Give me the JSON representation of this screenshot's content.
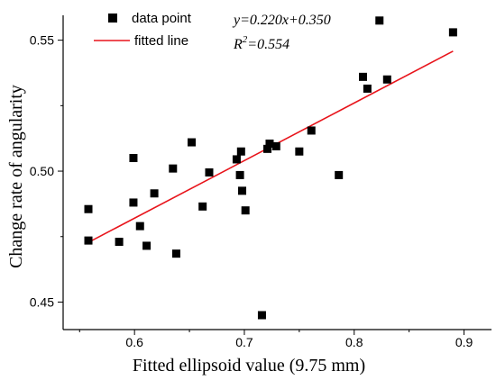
{
  "chart_data": {
    "type": "scatter",
    "xlabel": "Fitted ellipsoid value (9.75 mm)",
    "ylabel": "Change rate of angularity",
    "xlim": [
      0.535,
      0.925
    ],
    "ylim": [
      0.4395,
      0.5595
    ],
    "xticks": [
      {
        "value": 0.6,
        "label": "0.6"
      },
      {
        "value": 0.7,
        "label": "0.7"
      },
      {
        "value": 0.8,
        "label": "0.8"
      },
      {
        "value": 0.9,
        "label": "0.9"
      }
    ],
    "yticks": [
      {
        "value": 0.45,
        "label": "0.45"
      },
      {
        "value": 0.5,
        "label": "0.50"
      },
      {
        "value": 0.55,
        "label": "0.55"
      }
    ],
    "series": [
      {
        "name": "data point",
        "kind": "scatter",
        "color": "#000000",
        "points": [
          [
            0.558,
            0.4855
          ],
          [
            0.558,
            0.4735
          ],
          [
            0.586,
            0.473
          ],
          [
            0.599,
            0.505
          ],
          [
            0.599,
            0.488
          ],
          [
            0.605,
            0.479
          ],
          [
            0.611,
            0.4715
          ],
          [
            0.618,
            0.4915
          ],
          [
            0.635,
            0.501
          ],
          [
            0.638,
            0.4685
          ],
          [
            0.652,
            0.511
          ],
          [
            0.662,
            0.4865
          ],
          [
            0.668,
            0.4995
          ],
          [
            0.693,
            0.5045
          ],
          [
            0.696,
            0.4985
          ],
          [
            0.697,
            0.5075
          ],
          [
            0.698,
            0.4925
          ],
          [
            0.701,
            0.485
          ],
          [
            0.716,
            0.445
          ],
          [
            0.721,
            0.5085
          ],
          [
            0.723,
            0.5105
          ],
          [
            0.729,
            0.5095
          ],
          [
            0.75,
            0.5075
          ],
          [
            0.761,
            0.5155
          ],
          [
            0.786,
            0.4985
          ],
          [
            0.808,
            0.536
          ],
          [
            0.812,
            0.5315
          ],
          [
            0.823,
            0.5575
          ],
          [
            0.83,
            0.535
          ],
          [
            0.89,
            0.553
          ]
        ]
      },
      {
        "name": "fitted line",
        "kind": "line",
        "color": "#e8141b",
        "points": [
          [
            0.558,
            0.4728
          ],
          [
            0.89,
            0.5458
          ]
        ]
      }
    ],
    "annotations": [
      {
        "id": "equation",
        "text": "y=0.220x+0.350"
      },
      {
        "id": "r2",
        "prefix": "R",
        "sup": "2",
        "suffix": "=0.554"
      }
    ],
    "legend_position": "top-left"
  }
}
